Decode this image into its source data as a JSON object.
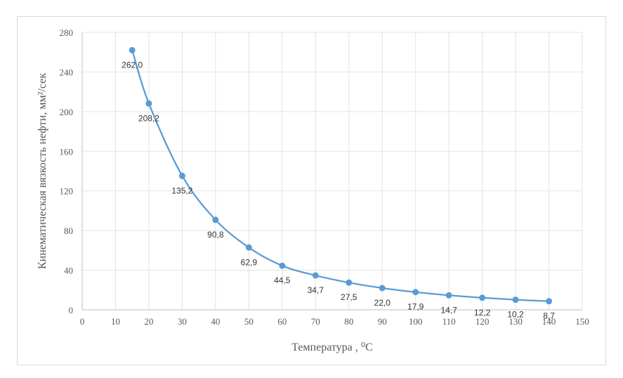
{
  "chart_data": {
    "type": "line",
    "xlabel": "Температура , ⁰С",
    "ylabel": "Кинематическая вязкость нефти, мм²/сек",
    "xlim": [
      0,
      150
    ],
    "ylim": [
      0,
      280
    ],
    "x_ticks": [
      0,
      10,
      20,
      30,
      40,
      50,
      60,
      70,
      80,
      90,
      100,
      110,
      120,
      130,
      140,
      150
    ],
    "y_ticks": [
      0,
      40,
      80,
      120,
      160,
      200,
      240,
      280
    ],
    "grid": true,
    "legend": "none",
    "series": [
      {
        "color": "#5b9bd5",
        "x": [
          15,
          20,
          30,
          40,
          50,
          60,
          70,
          80,
          90,
          100,
          110,
          120,
          130,
          140
        ],
        "y": [
          262.0,
          208.2,
          135.2,
          90.8,
          62.9,
          44.5,
          34.7,
          27.5,
          22.0,
          17.9,
          14.7,
          12.2,
          10.2,
          8.7
        ],
        "labels": [
          "262,0",
          "208,2",
          "135,2",
          "90,8",
          "62,9",
          "44,5",
          "34,7",
          "27,5",
          "22,0",
          "17,9",
          "14,7",
          "12,2",
          "10,2",
          "8,7"
        ]
      }
    ]
  }
}
